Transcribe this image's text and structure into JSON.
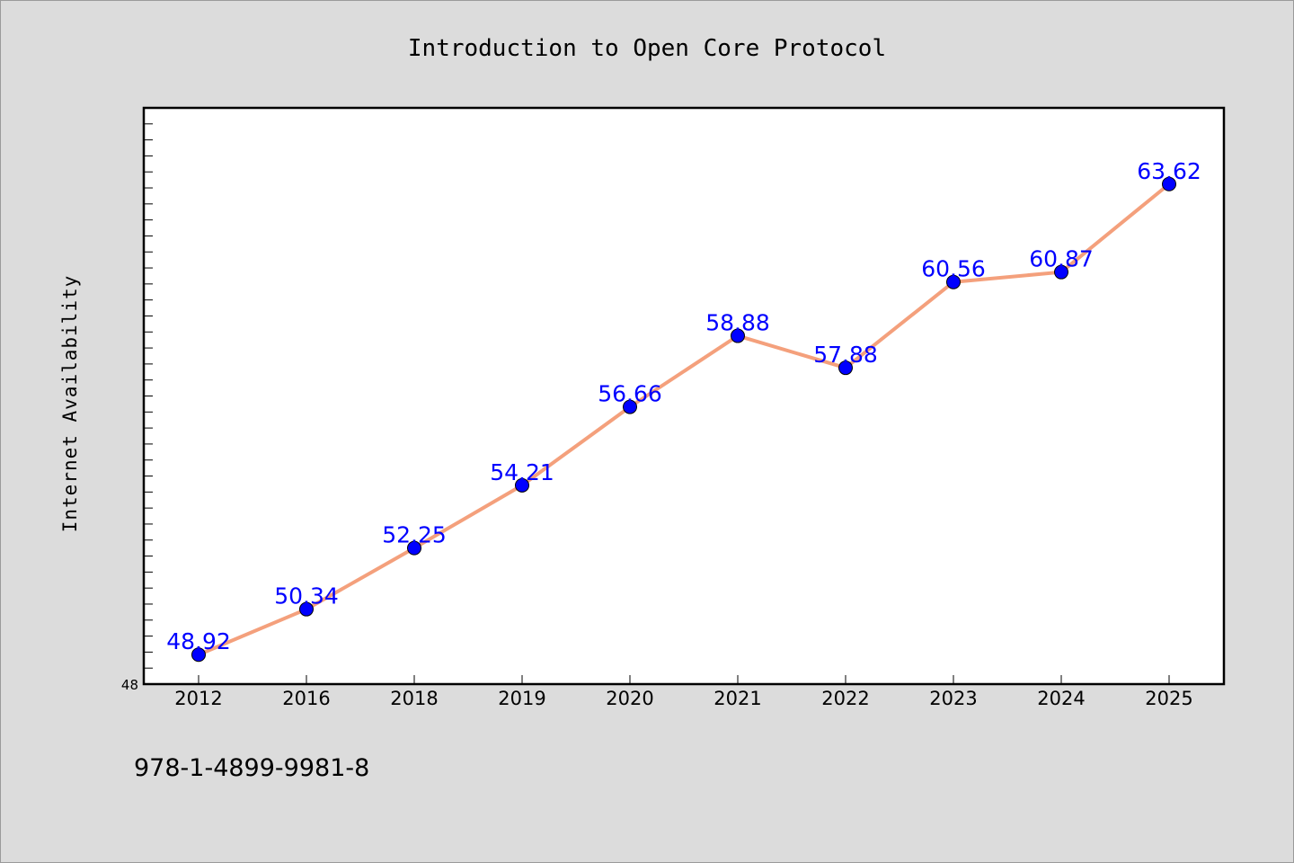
{
  "chart_data": {
    "type": "line",
    "title": "Introduction to Open Core Protocol",
    "xlabel": "",
    "ylabel": "Internet Availability",
    "categories": [
      "2012",
      "2016",
      "2018",
      "2019",
      "2020",
      "2021",
      "2022",
      "2023",
      "2024",
      "2025"
    ],
    "series": [
      {
        "values": [
          48.92,
          50.34,
          52.25,
          54.21,
          56.66,
          58.88,
          57.88,
          60.56,
          60.87,
          63.62
        ]
      }
    ],
    "data_labels": [
      "48.92",
      "50.34",
      "52.25",
      "54.21",
      "56.66",
      "58.88",
      "57.88",
      "60.56",
      "60.87",
      "63.62"
    ],
    "ylim": [
      48,
      66
    ],
    "ytick_labels": [
      "48"
    ],
    "grid": false,
    "legend": "none",
    "line_color": "#f4a07c",
    "marker_color": "#0000ff",
    "label_color": "#0000ff",
    "footer_text": "978-1-4899-9981-8"
  }
}
